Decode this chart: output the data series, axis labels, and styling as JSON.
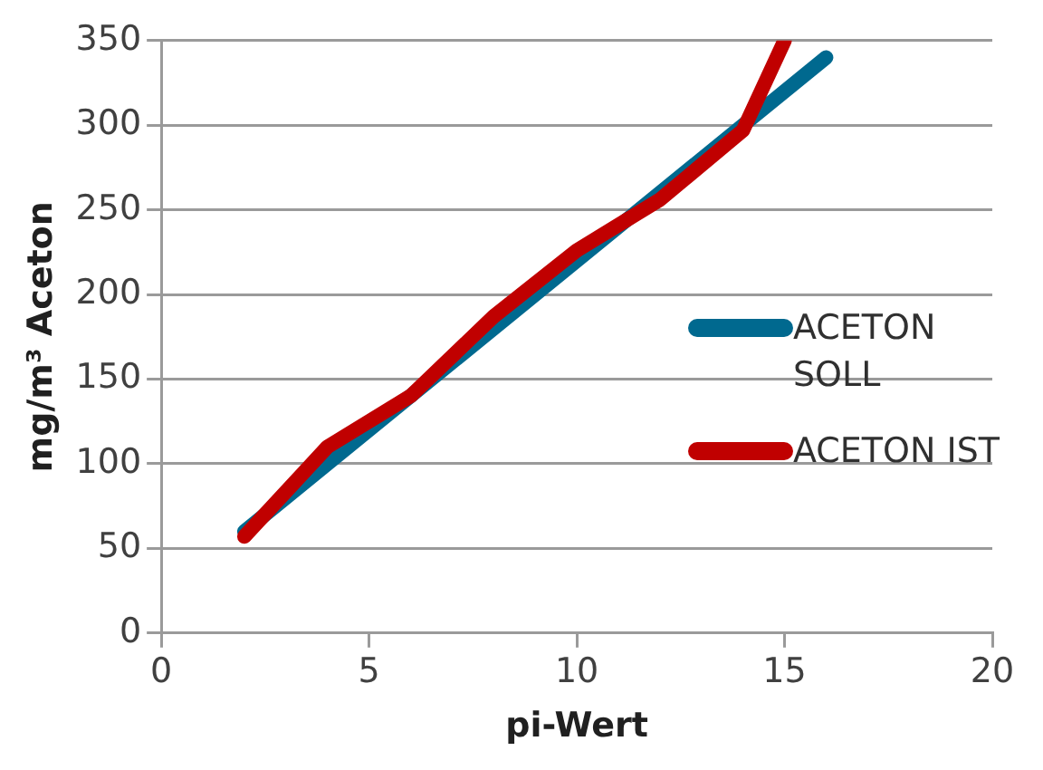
{
  "chart_data": {
    "type": "line",
    "xlabel": "pi-Wert",
    "ylabel": "mg/m³ Aceton",
    "xlim": [
      0,
      20
    ],
    "xticks": [
      0,
      5,
      10,
      15,
      20
    ],
    "ylim": [
      0,
      350
    ],
    "yticks": [
      0,
      50,
      100,
      150,
      200,
      250,
      300,
      350
    ],
    "grid": "y",
    "legend": "right",
    "marker": "none",
    "line_style": "solid",
    "series": [
      {
        "name": "ACETON SOLL",
        "color": "#00698f",
        "x": [
          2,
          16
        ],
        "values": [
          60,
          340
        ]
      },
      {
        "name": "ACETON IST",
        "color": "#c00000",
        "x": [
          2,
          4,
          6,
          8,
          10,
          12,
          14,
          15
        ],
        "values": [
          57,
          110,
          140,
          187,
          226,
          256,
          297,
          350
        ]
      }
    ]
  }
}
